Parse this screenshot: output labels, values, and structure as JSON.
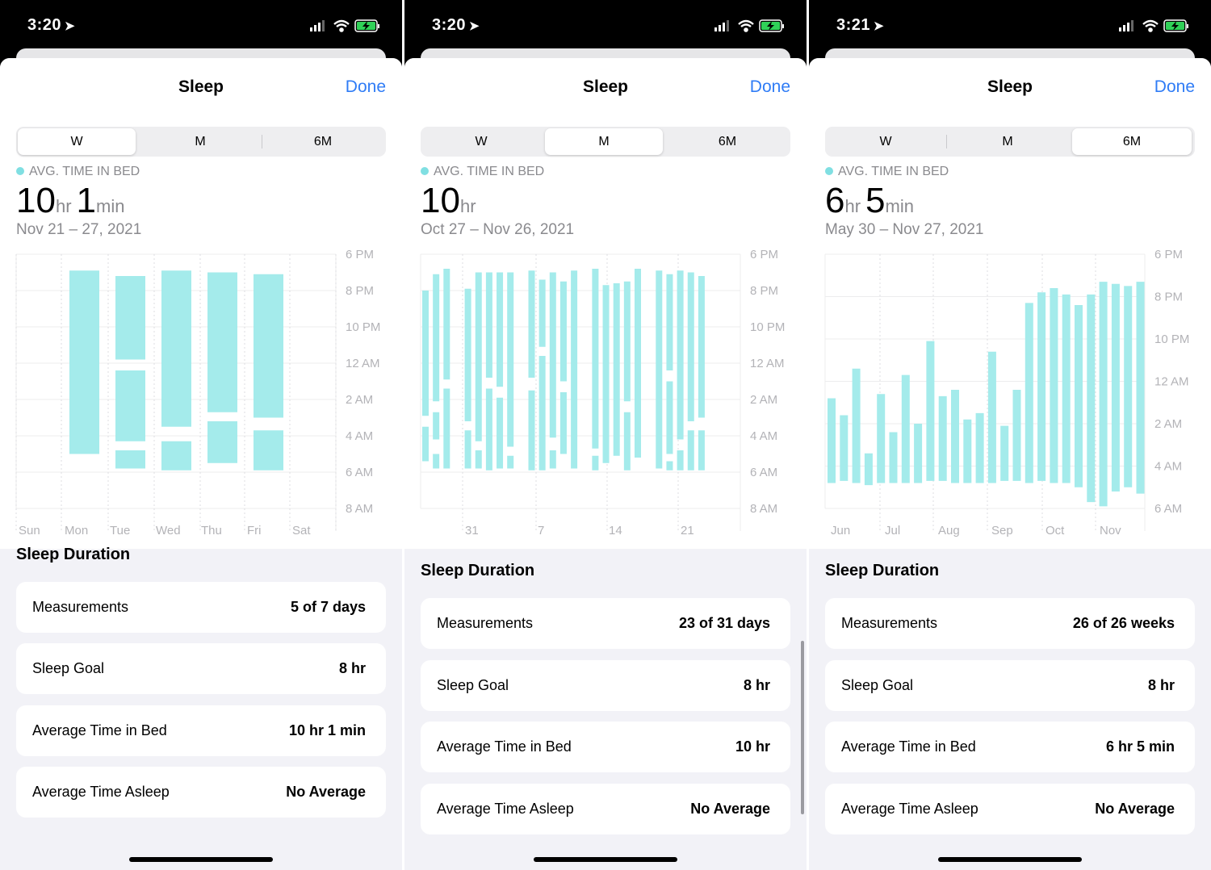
{
  "colors": {
    "accent": "#2f7cf6",
    "bar": "#a4ebeb",
    "legend_dot": "#80dfe2"
  },
  "panels": [
    {
      "status_time": "3:20",
      "title": "Sleep",
      "done": "Done",
      "segments": [
        "W",
        "M",
        "6M"
      ],
      "selected_segment": "W",
      "avg_label": "AVG. TIME IN BED",
      "big_value": [
        {
          "n": "10",
          "u": "hr"
        },
        {
          "n": "1",
          "u": "min"
        }
      ],
      "date_range": "Nov 21 – 27, 2021",
      "section_title": "Sleep Duration",
      "rows": [
        {
          "label": "Measurements",
          "value": "5 of 7 days"
        },
        {
          "label": "Sleep Goal",
          "value": "8 hr"
        },
        {
          "label": "Average Time in Bed",
          "value": "10 hr 1 min"
        },
        {
          "label": "Average Time Asleep",
          "value": "No Average"
        }
      ]
    },
    {
      "status_time": "3:20",
      "title": "Sleep",
      "done": "Done",
      "segments": [
        "W",
        "M",
        "6M"
      ],
      "selected_segment": "M",
      "avg_label": "AVG. TIME IN BED",
      "big_value": [
        {
          "n": "10",
          "u": "hr"
        }
      ],
      "date_range": "Oct 27 – Nov 26, 2021",
      "section_title": "Sleep Duration",
      "rows": [
        {
          "label": "Measurements",
          "value": "23 of 31 days"
        },
        {
          "label": "Sleep Goal",
          "value": "8 hr"
        },
        {
          "label": "Average Time in Bed",
          "value": "10 hr"
        },
        {
          "label": "Average Time Asleep",
          "value": "No Average"
        }
      ]
    },
    {
      "status_time": "3:21",
      "title": "Sleep",
      "done": "Done",
      "segments": [
        "W",
        "M",
        "6M"
      ],
      "selected_segment": "6M",
      "avg_label": "AVG. TIME IN BED",
      "big_value": [
        {
          "n": "6",
          "u": "hr"
        },
        {
          "n": "5",
          "u": "min"
        }
      ],
      "date_range": "May 30 – Nov 27, 2021",
      "section_title": "Sleep Duration",
      "rows": [
        {
          "label": "Measurements",
          "value": "26 of 26 weeks"
        },
        {
          "label": "Sleep Goal",
          "value": "8 hr"
        },
        {
          "label": "Average Time in Bed",
          "value": "6 hr 5 min"
        },
        {
          "label": "Average Time Asleep",
          "value": "No Average"
        }
      ]
    }
  ],
  "chart_data": [
    {
      "type": "bar",
      "description_units": "hours after 6 PM (0 = 6 PM, 14 = 8 AM)",
      "y_ticks": [
        "6 PM",
        "8 PM",
        "10 PM",
        "12 AM",
        "2 AM",
        "4 AM",
        "6 AM",
        "8 AM"
      ],
      "y_range": [
        0,
        14
      ],
      "x_labels": [
        "Sun",
        "Mon",
        "Tue",
        "Wed",
        "Thu",
        "Fri",
        "Sat"
      ],
      "segments": [
        {
          "x": 1,
          "start": 0.9,
          "end": 11.0
        },
        {
          "x": 2,
          "start": 1.2,
          "end": 5.8
        },
        {
          "x": 2,
          "start": 6.4,
          "end": 10.3
        },
        {
          "x": 2,
          "start": 10.8,
          "end": 11.8
        },
        {
          "x": 3,
          "start": 0.9,
          "end": 9.5
        },
        {
          "x": 3,
          "start": 10.3,
          "end": 11.9
        },
        {
          "x": 4,
          "start": 1.0,
          "end": 8.7
        },
        {
          "x": 4,
          "start": 9.2,
          "end": 11.5
        },
        {
          "x": 5,
          "start": 1.1,
          "end": 9.0
        },
        {
          "x": 5,
          "start": 9.7,
          "end": 11.9
        }
      ]
    },
    {
      "type": "bar",
      "y_ticks": [
        "6 PM",
        "8 PM",
        "10 PM",
        "12 AM",
        "2 AM",
        "4 AM",
        "6 AM",
        "8 AM"
      ],
      "y_range": [
        0,
        14
      ],
      "x_labels": [
        "31",
        "7",
        "14",
        "21"
      ],
      "segments": [
        {
          "x": 0,
          "start": 2.0,
          "end": 8.9
        },
        {
          "x": 0,
          "start": 9.5,
          "end": 11.4
        },
        {
          "x": 1,
          "start": 1.1,
          "end": 8.1
        },
        {
          "x": 1,
          "start": 8.7,
          "end": 10.2
        },
        {
          "x": 1,
          "start": 11.0,
          "end": 11.8
        },
        {
          "x": 2,
          "start": 0.8,
          "end": 6.9
        },
        {
          "x": 2,
          "start": 7.4,
          "end": 11.8
        },
        {
          "x": 4,
          "start": 1.9,
          "end": 9.2
        },
        {
          "x": 4,
          "start": 9.7,
          "end": 11.8
        },
        {
          "x": 5,
          "start": 1.0,
          "end": 10.3
        },
        {
          "x": 5,
          "start": 10.8,
          "end": 11.8
        },
        {
          "x": 6,
          "start": 1.0,
          "end": 6.8
        },
        {
          "x": 6,
          "start": 7.4,
          "end": 11.9
        },
        {
          "x": 7,
          "start": 1.0,
          "end": 7.3
        },
        {
          "x": 7,
          "start": 7.9,
          "end": 11.8
        },
        {
          "x": 8,
          "start": 1.0,
          "end": 10.6
        },
        {
          "x": 8,
          "start": 11.1,
          "end": 11.8
        },
        {
          "x": 10,
          "start": 0.9,
          "end": 6.8
        },
        {
          "x": 10,
          "start": 7.5,
          "end": 11.9
        },
        {
          "x": 11,
          "start": 1.4,
          "end": 5.1
        },
        {
          "x": 11,
          "start": 5.6,
          "end": 11.9
        },
        {
          "x": 12,
          "start": 1.0,
          "end": 10.1
        },
        {
          "x": 12,
          "start": 10.8,
          "end": 11.8
        },
        {
          "x": 13,
          "start": 1.5,
          "end": 7.0
        },
        {
          "x": 13,
          "start": 7.6,
          "end": 11.0
        },
        {
          "x": 14,
          "start": 0.9,
          "end": 11.8
        },
        {
          "x": 16,
          "start": 0.8,
          "end": 10.7
        },
        {
          "x": 16,
          "start": 11.1,
          "end": 11.9
        },
        {
          "x": 17,
          "start": 1.7,
          "end": 11.5
        },
        {
          "x": 18,
          "start": 1.6,
          "end": 11.1
        },
        {
          "x": 19,
          "start": 1.5,
          "end": 8.1
        },
        {
          "x": 19,
          "start": 8.7,
          "end": 11.9
        },
        {
          "x": 20,
          "start": 0.8,
          "end": 11.2
        },
        {
          "x": 22,
          "start": 0.9,
          "end": 11.8
        },
        {
          "x": 23,
          "start": 1.1,
          "end": 6.4
        },
        {
          "x": 23,
          "start": 7.0,
          "end": 11.0
        },
        {
          "x": 23,
          "start": 11.4,
          "end": 11.9
        },
        {
          "x": 24,
          "start": 0.9,
          "end": 10.2
        },
        {
          "x": 24,
          "start": 10.8,
          "end": 11.9
        },
        {
          "x": 25,
          "start": 1.0,
          "end": 9.2
        },
        {
          "x": 25,
          "start": 9.7,
          "end": 11.9
        },
        {
          "x": 26,
          "start": 1.2,
          "end": 9.0
        },
        {
          "x": 26,
          "start": 9.7,
          "end": 11.9
        }
      ]
    },
    {
      "type": "bar",
      "y_ticks": [
        "6 PM",
        "8 PM",
        "10 PM",
        "12 AM",
        "2 AM",
        "4 AM",
        "6 AM"
      ],
      "y_range": [
        0,
        12
      ],
      "x_labels": [
        "Jun",
        "Jul",
        "Aug",
        "Sep",
        "Oct",
        "Nov"
      ],
      "segments": [
        {
          "x": 0,
          "start": 6.8,
          "end": 10.8
        },
        {
          "x": 1,
          "start": 7.6,
          "end": 10.7
        },
        {
          "x": 2,
          "start": 5.4,
          "end": 10.8
        },
        {
          "x": 3,
          "start": 9.4,
          "end": 10.9
        },
        {
          "x": 4,
          "start": 6.6,
          "end": 10.8
        },
        {
          "x": 5,
          "start": 8.4,
          "end": 10.8
        },
        {
          "x": 6,
          "start": 5.7,
          "end": 10.8
        },
        {
          "x": 7,
          "start": 8.0,
          "end": 10.8
        },
        {
          "x": 8,
          "start": 4.1,
          "end": 10.7
        },
        {
          "x": 9,
          "start": 6.7,
          "end": 10.7
        },
        {
          "x": 10,
          "start": 6.4,
          "end": 10.8
        },
        {
          "x": 11,
          "start": 7.8,
          "end": 10.8
        },
        {
          "x": 12,
          "start": 7.5,
          "end": 10.8
        },
        {
          "x": 13,
          "start": 4.6,
          "end": 10.8
        },
        {
          "x": 14,
          "start": 8.1,
          "end": 10.7
        },
        {
          "x": 15,
          "start": 6.4,
          "end": 10.7
        },
        {
          "x": 16,
          "start": 2.3,
          "end": 10.8
        },
        {
          "x": 17,
          "start": 1.8,
          "end": 10.7
        },
        {
          "x": 18,
          "start": 1.6,
          "end": 10.8
        },
        {
          "x": 19,
          "start": 1.9,
          "end": 10.8
        },
        {
          "x": 20,
          "start": 2.4,
          "end": 11.0
        },
        {
          "x": 21,
          "start": 1.9,
          "end": 11.7
        },
        {
          "x": 22,
          "start": 1.3,
          "end": 11.9
        },
        {
          "x": 23,
          "start": 1.4,
          "end": 11.2
        },
        {
          "x": 24,
          "start": 1.5,
          "end": 11.0
        },
        {
          "x": 25,
          "start": 1.3,
          "end": 11.3
        }
      ]
    }
  ]
}
